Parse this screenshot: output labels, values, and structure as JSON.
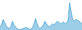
{
  "chart_data": {
    "type": "area",
    "values": [
      3.0,
      3.5,
      5.0,
      4.2,
      3.2,
      2.8,
      2.5,
      3.0,
      4.5,
      3.5,
      3.0,
      2.5,
      2.3,
      2.2,
      2.4,
      2.5,
      2.7,
      2.8,
      2.6,
      2.4,
      2.3,
      2.8,
      3.8,
      5.2,
      3.8,
      2.8,
      2.5,
      3.0,
      3.5,
      4.5,
      3.8,
      3.2,
      3.0,
      3.4,
      3.8,
      3.5,
      4.0,
      4.5,
      4.2,
      3.8,
      4.0,
      4.3,
      3.8,
      4.0,
      4.8,
      9.5,
      7.0,
      5.0,
      4.5,
      5.0,
      4.8,
      4.5,
      4.2,
      3.8
    ],
    "color": "#4da6d6",
    "ylim": [
      2.1,
      10.26
    ],
    "grid": false,
    "tick_labels": false
  }
}
